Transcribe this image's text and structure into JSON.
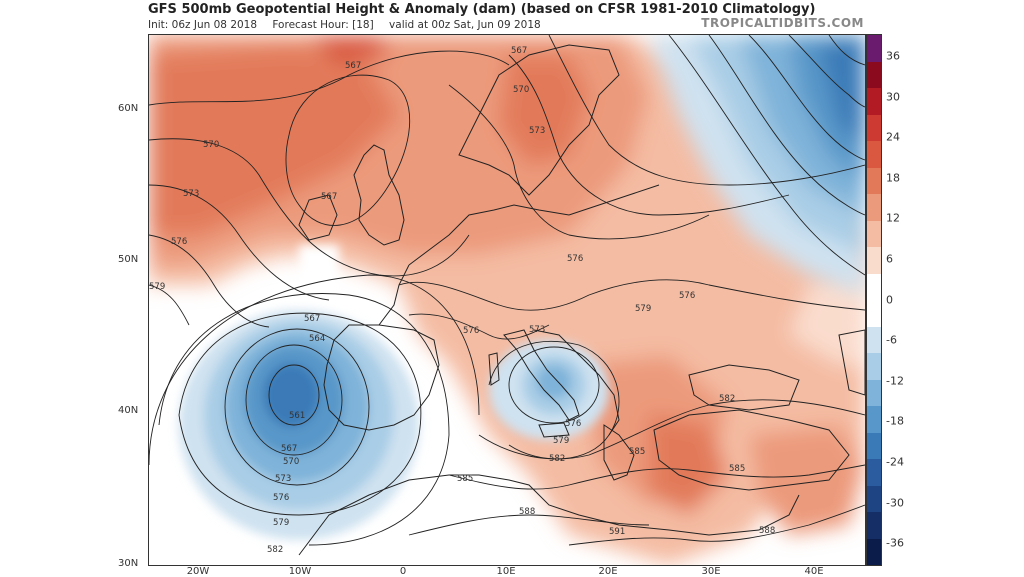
{
  "header": {
    "title": "GFS 500mb Geopotential Height & Anomaly (dam) (based on CFSR 1981-2010 Climatology)",
    "init": "Init: 06z Jun 08 2018",
    "forecast_hour": "Forecast Hour: [18]",
    "valid": "valid at 00z Sat, Jun 09 2018",
    "brand": "TROPICALTIDBITS.COM"
  },
  "axes": {
    "latitudes": [
      "60N",
      "50N",
      "40N",
      "30N"
    ],
    "longitudes": [
      "20W",
      "10W",
      "0",
      "10E",
      "20E",
      "30E",
      "40E"
    ]
  },
  "colorbar": {
    "labels": [
      "36",
      "30",
      "24",
      "18",
      "12",
      "6",
      "0",
      "-6",
      "-12",
      "-18",
      "-24",
      "-30",
      "-36"
    ],
    "colors": [
      "#6a1b6e",
      "#8b0a1e",
      "#b31b24",
      "#cc3a32",
      "#d9583f",
      "#e27a5a",
      "#ec9a7c",
      "#f4bca3",
      "#fadccd",
      "#ffffff",
      "#ffffff",
      "#cfe2f0",
      "#a9cde6",
      "#7fb3d9",
      "#5897c9",
      "#3a7ab7",
      "#2a5c9f",
      "#1f4483",
      "#162e66",
      "#0c1c4a"
    ]
  },
  "contour_labels": [
    {
      "name": "contour-label-567-north-atlantic",
      "text": "567"
    },
    {
      "name": "contour-label-570-atlantic",
      "text": "570"
    },
    {
      "name": "contour-label-573-atlantic",
      "text": "573"
    },
    {
      "name": "contour-label-576-atlantic",
      "text": "576"
    },
    {
      "name": "contour-label-579-atlantic",
      "text": "579"
    },
    {
      "name": "contour-label-567-uk",
      "text": "567"
    },
    {
      "name": "contour-label-567-scandinavia",
      "text": "567"
    },
    {
      "name": "contour-label-570-scandinavia",
      "text": "570"
    },
    {
      "name": "contour-label-573-scandinavia",
      "text": "573"
    },
    {
      "name": "contour-label-576-poland",
      "text": "576"
    },
    {
      "name": "contour-label-576-france",
      "text": "576"
    },
    {
      "name": "contour-label-573-alps",
      "text": "573"
    },
    {
      "name": "contour-label-579-hungary",
      "text": "579"
    },
    {
      "name": "contour-label-576-ukraine",
      "text": "576"
    },
    {
      "name": "contour-label-567-iberia",
      "text": "567"
    },
    {
      "name": "contour-label-564-iberia",
      "text": "564"
    },
    {
      "name": "contour-label-561-iberia",
      "text": "561"
    },
    {
      "name": "contour-label-567-iberia-south",
      "text": "567"
    },
    {
      "name": "contour-label-570-iberia-south",
      "text": "570"
    },
    {
      "name": "contour-label-573-iberia-south",
      "text": "573"
    },
    {
      "name": "contour-label-576-iberia-south",
      "text": "576"
    },
    {
      "name": "contour-label-579-iberia-south",
      "text": "579"
    },
    {
      "name": "contour-label-582-iberia-south",
      "text": "582"
    },
    {
      "name": "contour-label-576-italy",
      "text": "576"
    },
    {
      "name": "contour-label-579-italy",
      "text": "579"
    },
    {
      "name": "contour-label-582-italy",
      "text": "582"
    },
    {
      "name": "contour-label-585-north-africa",
      "text": "585"
    },
    {
      "name": "contour-label-588-north-africa",
      "text": "588"
    },
    {
      "name": "contour-label-585-greece",
      "text": "585"
    },
    {
      "name": "contour-label-582-turkey",
      "text": "582"
    },
    {
      "name": "contour-label-585-turkey",
      "text": "585"
    },
    {
      "name": "contour-label-591-libya",
      "text": "591"
    },
    {
      "name": "contour-label-588-egypt",
      "text": "588"
    }
  ]
}
